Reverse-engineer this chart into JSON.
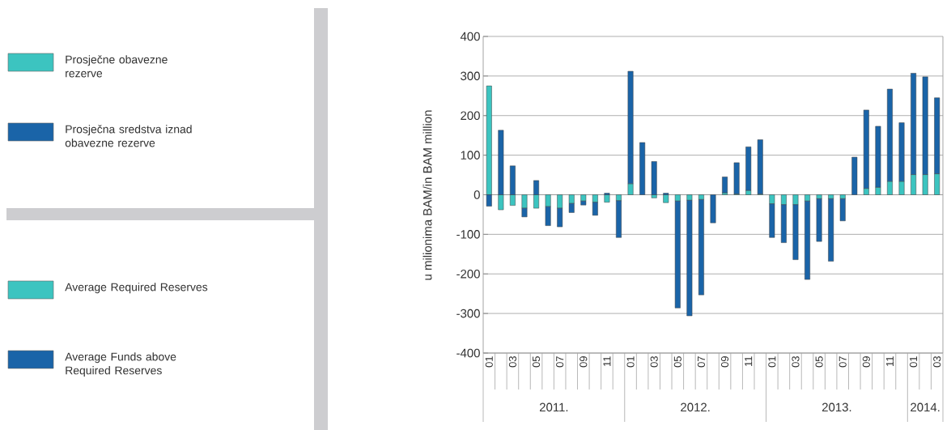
{
  "chart_data": {
    "type": "bar",
    "stacked": true,
    "ylabel": "u milionima BAM/in BAM million",
    "categories": [
      "01",
      null,
      "03",
      null,
      "05",
      null,
      "07",
      null,
      "09",
      null,
      "11",
      null,
      "01",
      null,
      "03",
      null,
      "05",
      null,
      "07",
      null,
      "09",
      null,
      "11",
      null,
      "01",
      null,
      "03",
      null,
      "05",
      null,
      "07",
      null,
      "09",
      null,
      "11",
      null,
      "01",
      null,
      "03"
    ],
    "series": [
      {
        "name": "Prosječne obavezne rezerve",
        "color": "#3cc4c0",
        "values": [
          275,
          -38,
          -27,
          -34,
          -34,
          -30,
          -34,
          -22,
          -16,
          -19,
          -19,
          -15,
          28,
          0,
          -8,
          -20,
          -16,
          -14,
          -12,
          0,
          5,
          2,
          11,
          2,
          -23,
          -25,
          -25,
          -16,
          -10,
          -10,
          -10,
          0,
          16,
          19,
          34,
          34,
          51,
          51,
          53
        ]
      },
      {
        "name": "Prosječna sredstva iznad obavezne rezerve",
        "color": "#1a64a8",
        "values": [
          -29,
          163,
          73,
          -22,
          36,
          -48,
          -47,
          -23,
          -10,
          -33,
          4,
          -93,
          284,
          132,
          84,
          4,
          -270,
          -292,
          -241,
          -71,
          40,
          79,
          110,
          137,
          -85,
          -96,
          -139,
          -198,
          -108,
          -158,
          -56,
          95,
          198,
          154,
          233,
          148,
          256,
          247,
          192
        ]
      }
    ],
    "ylim": [
      -400,
      400
    ],
    "yticks": [
      -400,
      -300,
      -200,
      -100,
      0,
      100,
      200,
      300,
      400
    ],
    "grid": "y",
    "legend": "left",
    "annotations": [
      "Average Required Reserves",
      "Average Funds above Required Reserves",
      "2011.",
      "2012.",
      "2013.",
      "2014."
    ]
  }
}
